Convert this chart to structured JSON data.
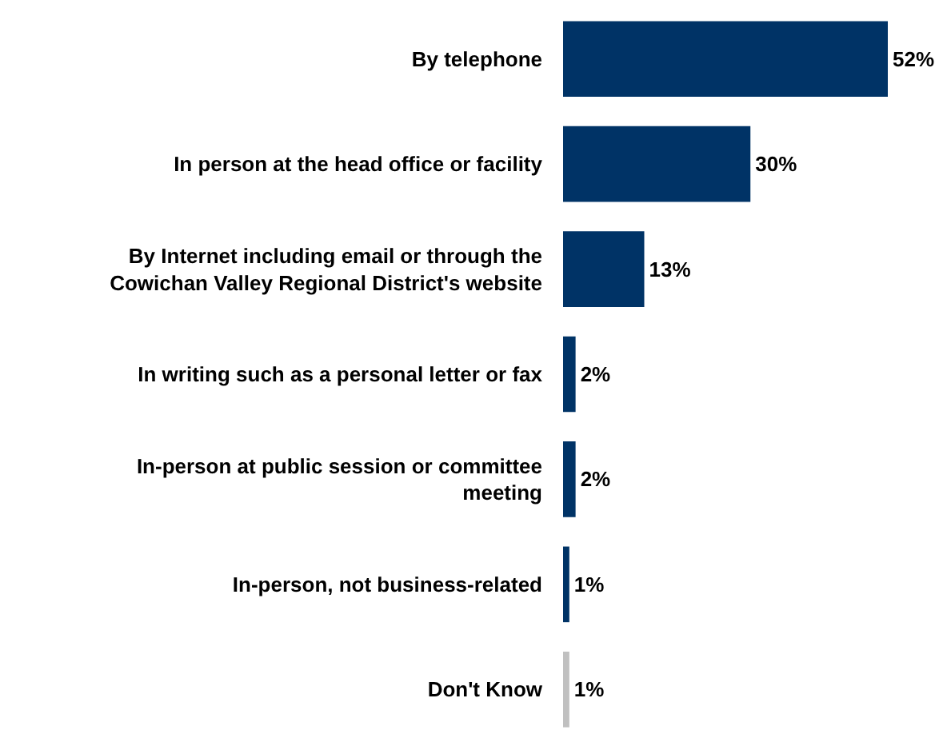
{
  "chart_data": {
    "type": "bar",
    "orientation": "horizontal",
    "categories": [
      "By telephone",
      "In person at the head office or facility",
      "By Internet including email or through the Cowichan Valley Regional District's website",
      "In writing such as a personal letter or fax",
      "In-person at public session or committee meeting",
      "In-person, not business-related",
      "Don't Know"
    ],
    "values": [
      52,
      30,
      13,
      2,
      2,
      1,
      1
    ],
    "value_labels": [
      "52%",
      "30%",
      "13%",
      "2%",
      "2%",
      "1%",
      "1%"
    ],
    "colors": [
      "#003366",
      "#003366",
      "#003366",
      "#003366",
      "#003366",
      "#003366",
      "#c0c0c0"
    ]
  }
}
